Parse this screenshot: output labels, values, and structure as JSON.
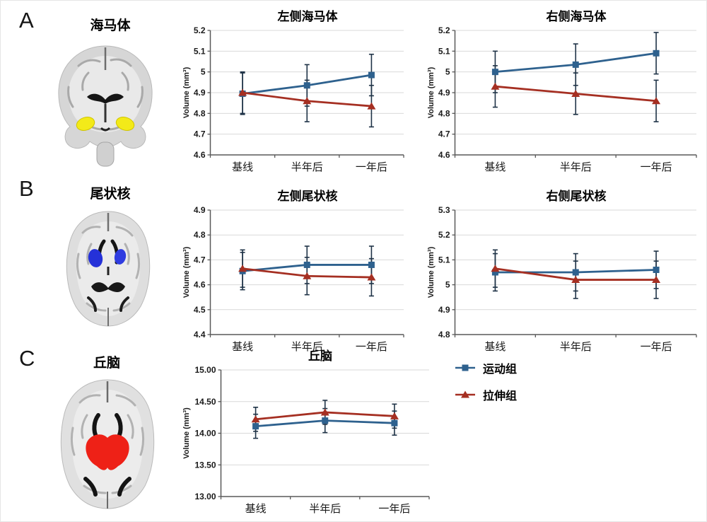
{
  "panels": [
    {
      "label": "A",
      "region": "海马体"
    },
    {
      "label": "B",
      "region": "尾状核"
    },
    {
      "label": "C",
      "region": "丘脑"
    }
  ],
  "legend": {
    "items": [
      {
        "key": "exercise-group",
        "label": "运动组",
        "marker": "square",
        "color": "#2e618e"
      },
      {
        "key": "stretch-group",
        "label": "拉伸组",
        "marker": "triangle",
        "color": "#a52f22"
      }
    ]
  },
  "colors": {
    "exercise_blue": "#2e618e",
    "stretch_red": "#a52f22",
    "error_bar": "#1f3347",
    "gridline": "#d9d9d9",
    "axis": "#595959",
    "hippocampus_highlight": "#f3ea19",
    "caudate_highlight": "#2531d8",
    "thalamus_highlight": "#ee2117"
  },
  "chart_data": [
    {
      "type": "line",
      "title": "左侧海马体",
      "ylabel": "Volume (mm³)",
      "categories": [
        "基线",
        "半年后",
        "一年后"
      ],
      "ylim": [
        4.6,
        5.2
      ],
      "grid": true,
      "y_tick_values": [
        4.6,
        4.7,
        4.8,
        4.9,
        5.0,
        5.1,
        5.2
      ],
      "y_tick_labels": [
        "4.6",
        "4.7",
        "4.8",
        "4.9",
        "5",
        "5.1",
        "5.2"
      ],
      "series": [
        {
          "name": "运动组",
          "color": "#2e618e",
          "marker": "square",
          "values": [
            4.895,
            4.935,
            4.985
          ],
          "err": [
            0.1,
            0.1,
            0.1
          ]
        },
        {
          "name": "拉伸组",
          "color": "#a52f22",
          "marker": "triangle",
          "values": [
            4.9,
            4.86,
            4.835
          ],
          "err": [
            0.1,
            0.1,
            0.1
          ]
        }
      ]
    },
    {
      "type": "line",
      "title": "右侧海马体",
      "ylabel": "Volume (mm³)",
      "categories": [
        "基线",
        "半年后",
        "一年后"
      ],
      "ylim": [
        4.6,
        5.2
      ],
      "grid": true,
      "y_tick_values": [
        4.6,
        4.7,
        4.8,
        4.9,
        5.0,
        5.1,
        5.2
      ],
      "y_tick_labels": [
        "4.6",
        "4.7",
        "4.8",
        "4.9",
        "5",
        "5.1",
        "5.2"
      ],
      "series": [
        {
          "name": "运动组",
          "color": "#2e618e",
          "marker": "square",
          "values": [
            5.0,
            5.035,
            5.09
          ],
          "err": [
            0.1,
            0.1,
            0.1
          ]
        },
        {
          "name": "拉伸组",
          "color": "#a52f22",
          "marker": "triangle",
          "values": [
            4.93,
            4.895,
            4.86
          ],
          "err": [
            0.1,
            0.1,
            0.1
          ]
        }
      ]
    },
    {
      "type": "line",
      "title": "左侧尾状核",
      "ylabel": "Volume (mm³)",
      "categories": [
        "基线",
        "半年后",
        "一年后"
      ],
      "ylim": [
        4.4,
        4.9
      ],
      "grid": true,
      "y_tick_values": [
        4.4,
        4.5,
        4.6,
        4.7,
        4.8,
        4.9
      ],
      "y_tick_labels": [
        "4.4",
        "4.5",
        "4.6",
        "4.7",
        "4.8",
        "4.9"
      ],
      "series": [
        {
          "name": "运动组",
          "color": "#2e618e",
          "marker": "square",
          "values": [
            4.655,
            4.68,
            4.68
          ],
          "err": [
            0.075,
            0.075,
            0.075
          ]
        },
        {
          "name": "拉伸组",
          "color": "#a52f22",
          "marker": "triangle",
          "values": [
            4.665,
            4.635,
            4.63
          ],
          "err": [
            0.075,
            0.075,
            0.075
          ]
        }
      ]
    },
    {
      "type": "line",
      "title": "右侧尾状核",
      "ylabel": "Volume (mm³)",
      "categories": [
        "基线",
        "半年后",
        "一年后"
      ],
      "ylim": [
        4.8,
        5.3
      ],
      "grid": true,
      "y_tick_values": [
        4.8,
        4.9,
        5.0,
        5.1,
        5.2,
        5.3
      ],
      "y_tick_labels": [
        "4.8",
        "4.9",
        "5",
        "5.1",
        "5.2",
        "5.3"
      ],
      "series": [
        {
          "name": "运动组",
          "color": "#2e618e",
          "marker": "square",
          "values": [
            5.05,
            5.05,
            5.06
          ],
          "err": [
            0.075,
            0.075,
            0.075
          ]
        },
        {
          "name": "拉伸组",
          "color": "#a52f22",
          "marker": "triangle",
          "values": [
            5.065,
            5.02,
            5.02
          ],
          "err": [
            0.075,
            0.075,
            0.075
          ]
        }
      ]
    },
    {
      "type": "line",
      "title": "丘脑",
      "ylabel": "Volume (mm³)",
      "categories": [
        "基线",
        "半年后",
        "一年后"
      ],
      "ylim": [
        13.0,
        15.0
      ],
      "grid": true,
      "y_tick_values": [
        13.0,
        13.5,
        14.0,
        14.5,
        15.0
      ],
      "y_tick_labels": [
        "13.00",
        "13.50",
        "14.00",
        "14.50",
        "15.00"
      ],
      "series": [
        {
          "name": "运动组",
          "color": "#2e618e",
          "marker": "square",
          "values": [
            14.11,
            14.2,
            14.16
          ],
          "err": [
            0.19,
            0.19,
            0.19
          ]
        },
        {
          "name": "拉伸组",
          "color": "#a52f22",
          "marker": "triangle",
          "values": [
            14.22,
            14.33,
            14.27
          ],
          "err": [
            0.19,
            0.19,
            0.19
          ]
        }
      ]
    }
  ]
}
